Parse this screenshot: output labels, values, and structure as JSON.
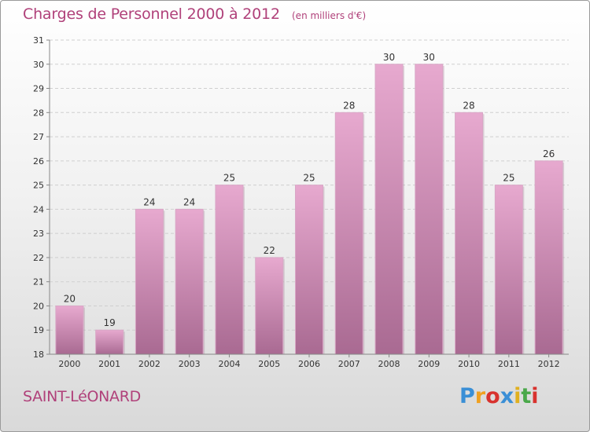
{
  "header": {
    "title": "Charges de Personnel 2000 à 2012",
    "unit": "(en milliers d'€)"
  },
  "footer": {
    "place": "SAINT-LéONARD",
    "logo_letters": [
      "P",
      "r",
      "o",
      "x",
      "i",
      "t",
      "i"
    ],
    "logo_colors": [
      "#3a8fd6",
      "#f0a020",
      "#d8322e",
      "#3a8fd6",
      "#e0b020",
      "#4aa84a",
      "#d8322e"
    ]
  },
  "colors": {
    "title": "#b0417a",
    "bar_top": "#e7a9cf",
    "bar_bottom": "#a96a92",
    "grid": "#cfcfcf",
    "axis": "#888888",
    "text": "#333333"
  },
  "chart_data": {
    "type": "bar",
    "title": "Charges de Personnel 2000 à 2012",
    "categories": [
      "2000",
      "2001",
      "2002",
      "2003",
      "2004",
      "2005",
      "2006",
      "2007",
      "2008",
      "2009",
      "2010",
      "2011",
      "2012"
    ],
    "values": [
      20,
      19,
      24,
      24,
      25,
      22,
      25,
      28,
      30,
      30,
      28,
      25,
      26
    ],
    "ylim": [
      18,
      31
    ],
    "yticks": [
      18,
      19,
      20,
      21,
      22,
      23,
      24,
      25,
      26,
      27,
      28,
      29,
      30,
      31
    ],
    "grid": true,
    "xlabel": "",
    "ylabel": ""
  }
}
